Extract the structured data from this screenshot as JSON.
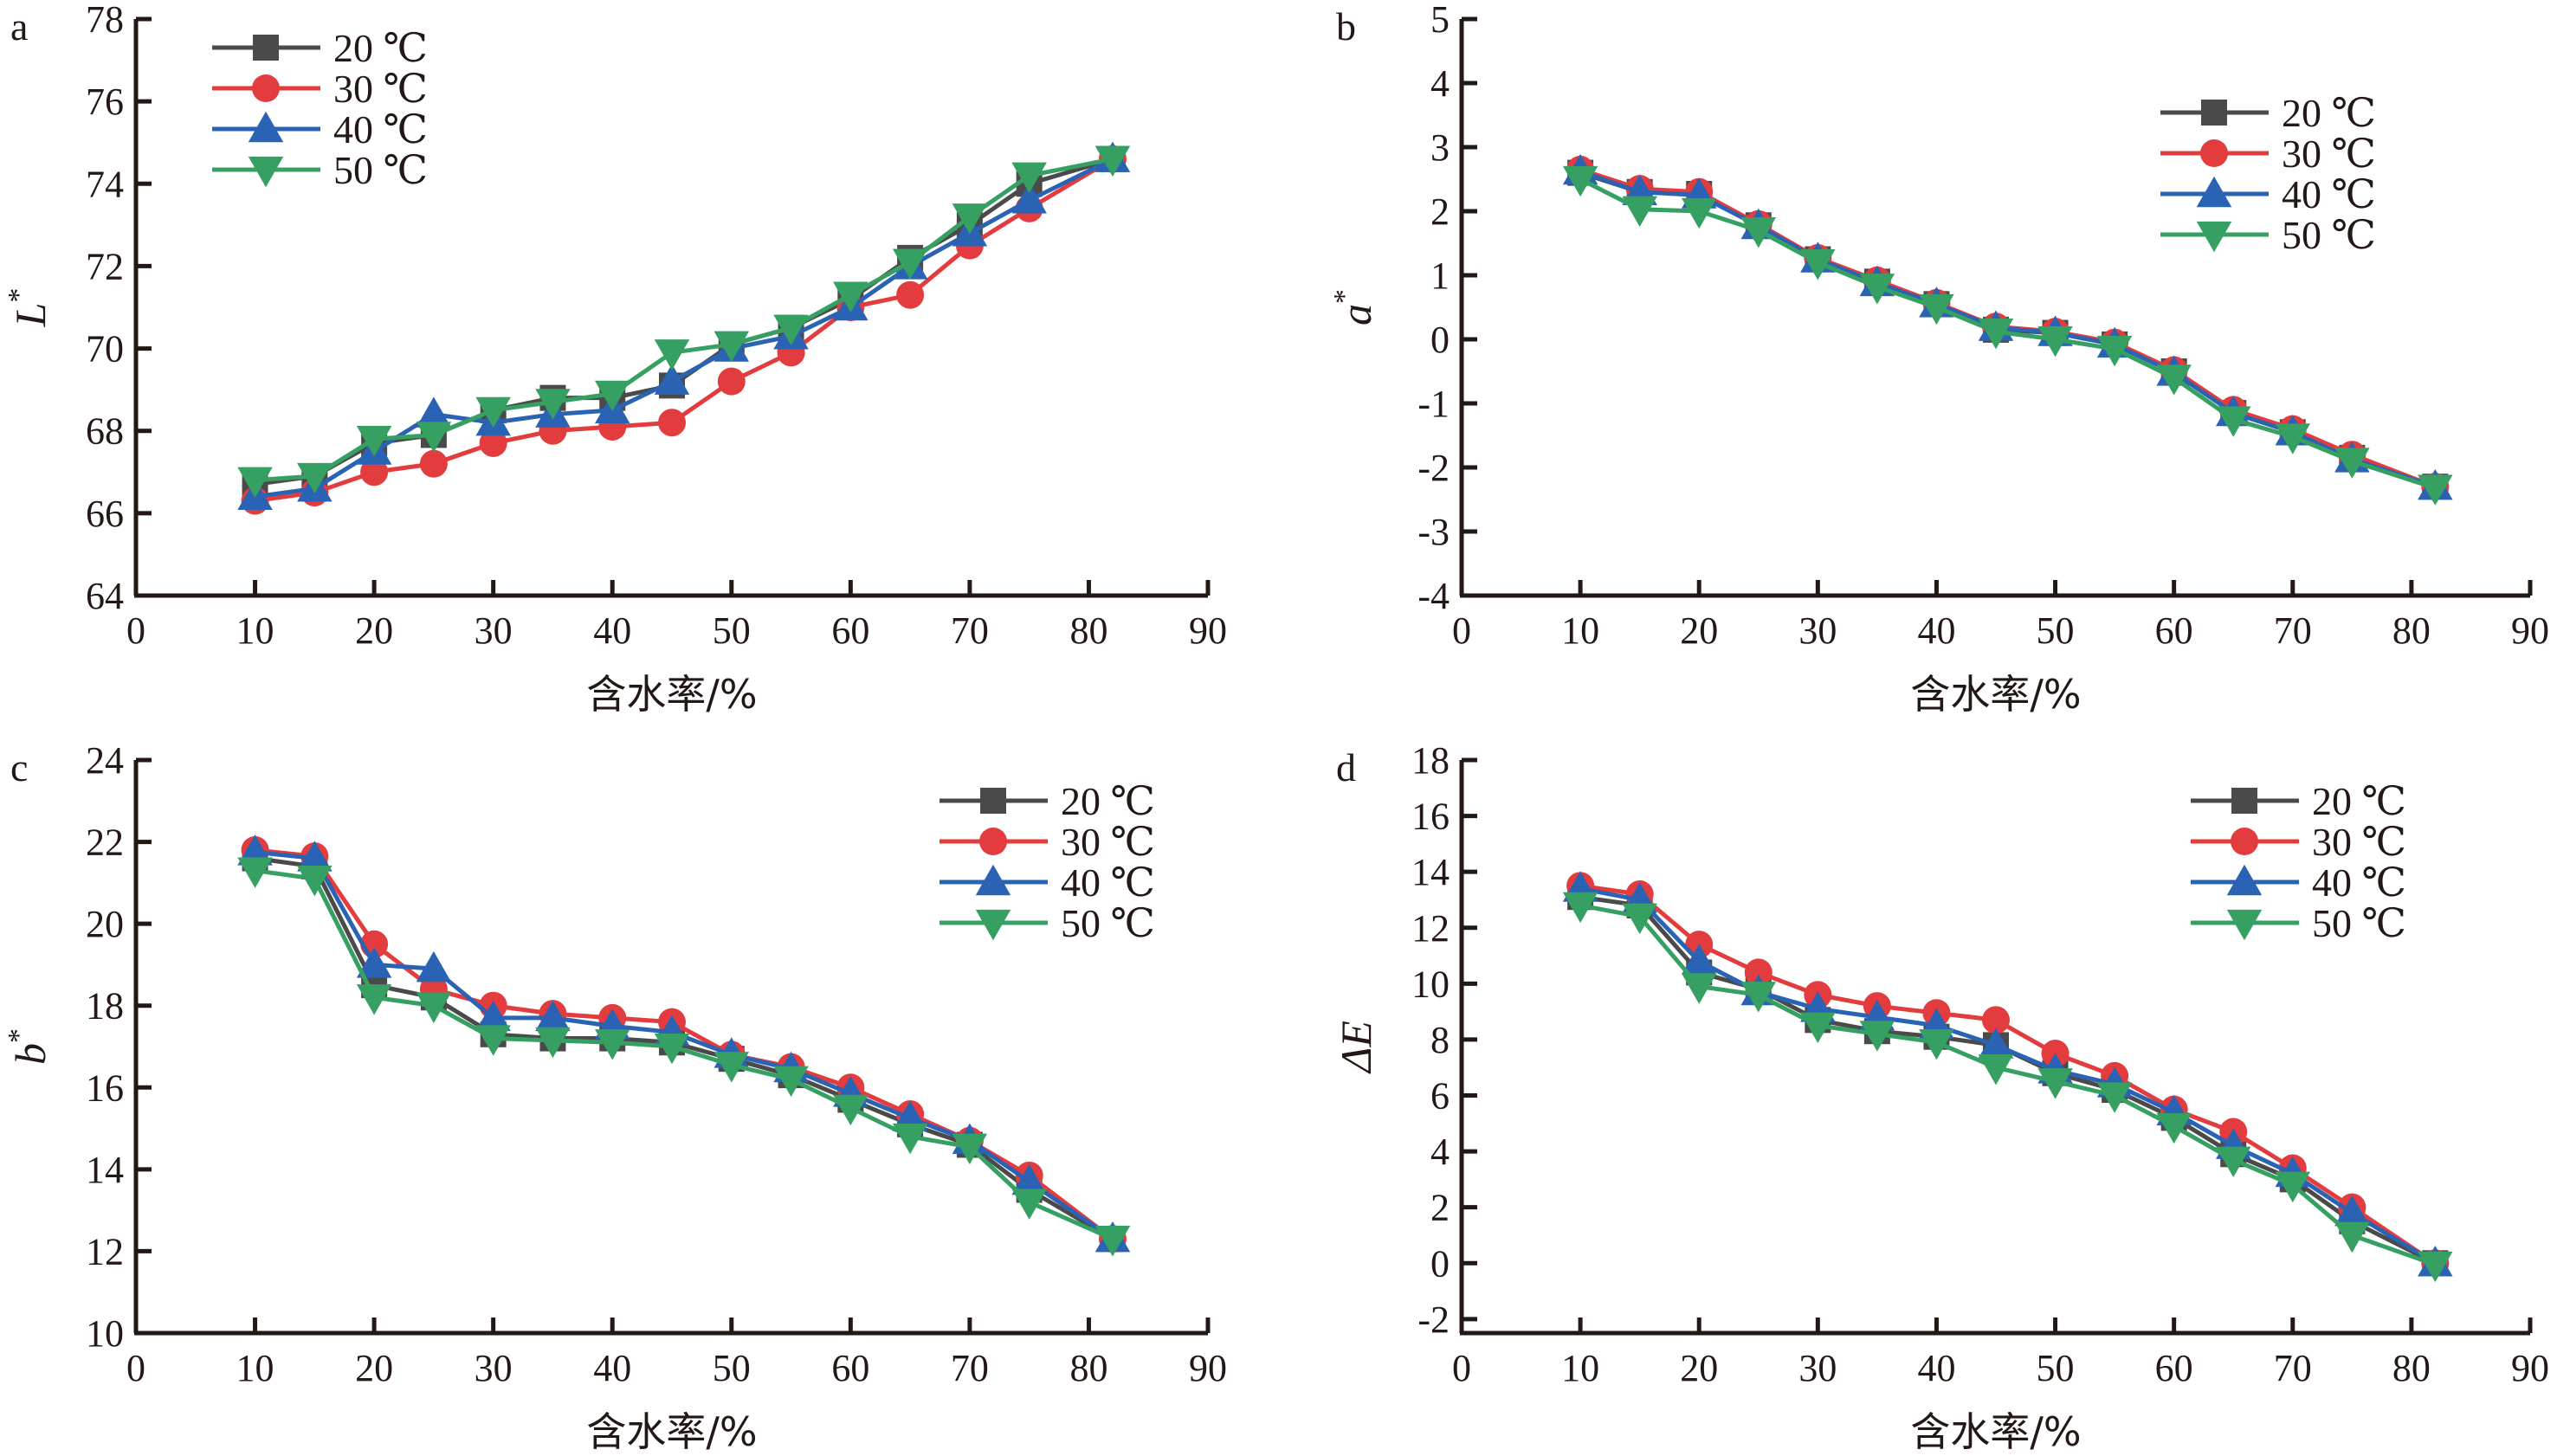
{
  "figure": {
    "panels": [
      "a",
      "b",
      "c",
      "d"
    ]
  },
  "chart_data": [
    {
      "type": "line",
      "panel_label": "a",
      "title": "",
      "xlabel": "含水率/%",
      "ylabel": "L*",
      "ylabel_main": "L",
      "ylabel_sup": "*",
      "xlim": [
        0,
        90
      ],
      "ylim": [
        64,
        78
      ],
      "xticks": [
        0,
        10,
        20,
        30,
        40,
        50,
        60,
        70,
        80,
        90
      ],
      "yticks": [
        64,
        66,
        68,
        70,
        72,
        74,
        76,
        78
      ],
      "grid": false,
      "legend_position": "top-left",
      "x": [
        10,
        15,
        20,
        25,
        30,
        35,
        40,
        45,
        50,
        55,
        60,
        65,
        70,
        75,
        82
      ],
      "series": [
        {
          "name": "20 ℃",
          "color": "#4a4a4a",
          "marker": "square",
          "values": [
            66.7,
            66.9,
            67.7,
            67.9,
            68.5,
            68.8,
            68.8,
            69.1,
            70.1,
            70.5,
            71.2,
            72.2,
            73.0,
            74.0,
            74.6
          ]
        },
        {
          "name": "30 ℃",
          "color": "#e33c3e",
          "marker": "circle",
          "values": [
            66.3,
            66.5,
            67.0,
            67.2,
            67.7,
            68.0,
            68.1,
            68.2,
            69.2,
            69.9,
            71.0,
            71.3,
            72.5,
            73.4,
            74.6
          ]
        },
        {
          "name": "40 ℃",
          "color": "#2a63b3",
          "marker": "triangle-up",
          "values": [
            66.4,
            66.6,
            67.5,
            68.4,
            68.2,
            68.4,
            68.5,
            69.2,
            70.0,
            70.3,
            71.0,
            72.0,
            72.8,
            73.6,
            74.6
          ]
        },
        {
          "name": "50 ℃",
          "color": "#36a062",
          "marker": "triangle-down",
          "values": [
            66.8,
            66.9,
            67.8,
            67.9,
            68.5,
            68.7,
            68.9,
            69.9,
            70.1,
            70.5,
            71.3,
            72.1,
            73.2,
            74.2,
            74.6
          ]
        }
      ]
    },
    {
      "type": "line",
      "panel_label": "b",
      "title": "",
      "xlabel": "含水率/%",
      "ylabel": "a*",
      "ylabel_main": "a",
      "ylabel_sup": "*",
      "xlim": [
        0,
        90
      ],
      "ylim": [
        -4,
        5
      ],
      "xticks": [
        0,
        10,
        20,
        30,
        40,
        50,
        60,
        70,
        80,
        90
      ],
      "yticks": [
        -4,
        -3,
        -2,
        -1,
        0,
        1,
        2,
        3,
        4,
        5
      ],
      "grid": false,
      "legend_position": "top-right",
      "x": [
        10,
        15,
        20,
        25,
        30,
        35,
        40,
        45,
        50,
        55,
        60,
        65,
        70,
        75,
        82
      ],
      "series": [
        {
          "name": "20 ℃",
          "color": "#4a4a4a",
          "marker": "square",
          "values": [
            2.6,
            2.3,
            2.27,
            1.78,
            1.25,
            0.9,
            0.55,
            0.15,
            0.1,
            -0.08,
            -0.5,
            -1.15,
            -1.45,
            -1.85,
            -2.3
          ]
        },
        {
          "name": "30 ℃",
          "color": "#e33c3e",
          "marker": "circle",
          "values": [
            2.65,
            2.35,
            2.3,
            1.8,
            1.27,
            0.92,
            0.57,
            0.2,
            0.12,
            -0.05,
            -0.48,
            -1.1,
            -1.4,
            -1.8,
            -2.3
          ]
        },
        {
          "name": "40 ℃",
          "color": "#2a63b3",
          "marker": "triangle-up",
          "values": [
            2.62,
            2.3,
            2.25,
            1.77,
            1.25,
            0.88,
            0.55,
            0.18,
            0.1,
            -0.08,
            -0.52,
            -1.15,
            -1.45,
            -1.87,
            -2.3
          ]
        },
        {
          "name": "50 ℃",
          "color": "#36a062",
          "marker": "triangle-down",
          "values": [
            2.5,
            2.03,
            2.0,
            1.7,
            1.2,
            0.82,
            0.5,
            0.12,
            0.0,
            -0.15,
            -0.6,
            -1.25,
            -1.52,
            -1.9,
            -2.32
          ]
        }
      ]
    },
    {
      "type": "line",
      "panel_label": "c",
      "title": "",
      "xlabel": "含水率/%",
      "ylabel": "b*",
      "ylabel_main": "b",
      "ylabel_sup": "*",
      "xlim": [
        0,
        90
      ],
      "ylim": [
        10,
        24
      ],
      "xticks": [
        0,
        10,
        20,
        30,
        40,
        50,
        60,
        70,
        80,
        90
      ],
      "yticks": [
        10,
        12,
        14,
        16,
        18,
        20,
        22,
        24
      ],
      "grid": false,
      "legend_position": "top-right",
      "x": [
        10,
        15,
        20,
        25,
        30,
        35,
        40,
        45,
        50,
        55,
        60,
        65,
        70,
        75,
        82
      ],
      "series": [
        {
          "name": "20 ℃",
          "color": "#4a4a4a",
          "marker": "square",
          "values": [
            21.6,
            21.4,
            18.5,
            18.2,
            17.3,
            17.2,
            17.2,
            17.1,
            16.7,
            16.3,
            15.7,
            15.1,
            14.6,
            13.5,
            12.3
          ]
        },
        {
          "name": "30 ℃",
          "color": "#e33c3e",
          "marker": "circle",
          "values": [
            21.8,
            21.65,
            19.5,
            18.4,
            18.0,
            17.8,
            17.7,
            17.6,
            16.8,
            16.5,
            16.0,
            15.35,
            14.7,
            13.85,
            12.3
          ]
        },
        {
          "name": "40 ℃",
          "color": "#2a63b3",
          "marker": "triangle-up",
          "values": [
            21.75,
            21.6,
            19.0,
            18.9,
            17.7,
            17.7,
            17.5,
            17.35,
            16.8,
            16.45,
            15.85,
            15.25,
            14.7,
            13.7,
            12.3
          ]
        },
        {
          "name": "50 ℃",
          "color": "#36a062",
          "marker": "triangle-down",
          "values": [
            21.3,
            21.1,
            18.2,
            18.0,
            17.2,
            17.15,
            17.1,
            17.0,
            16.55,
            16.2,
            15.5,
            14.8,
            14.55,
            13.2,
            12.3
          ]
        }
      ]
    },
    {
      "type": "line",
      "panel_label": "d",
      "title": "",
      "xlabel": "含水率/%",
      "ylabel": "ΔE",
      "ylabel_main": "ΔE",
      "ylabel_sup": "",
      "xlim": [
        0,
        90
      ],
      "ylim": [
        -2.5,
        18
      ],
      "xticks": [
        0,
        10,
        20,
        30,
        40,
        50,
        60,
        70,
        80,
        90
      ],
      "yticks": [
        -2,
        0,
        2,
        4,
        6,
        8,
        10,
        12,
        14,
        16,
        18
      ],
      "grid": false,
      "legend_position": "top-right",
      "x": [
        10,
        15,
        20,
        25,
        30,
        35,
        40,
        45,
        50,
        55,
        60,
        65,
        70,
        75,
        82
      ],
      "series": [
        {
          "name": "20 ℃",
          "color": "#4a4a4a",
          "marker": "square",
          "values": [
            13.1,
            12.8,
            10.4,
            9.8,
            8.7,
            8.3,
            8.1,
            7.8,
            6.8,
            6.2,
            5.2,
            3.9,
            3.0,
            1.5,
            0.0
          ]
        },
        {
          "name": "30 ℃",
          "color": "#e33c3e",
          "marker": "circle",
          "values": [
            13.5,
            13.2,
            11.4,
            10.4,
            9.6,
            9.2,
            8.95,
            8.7,
            7.5,
            6.7,
            5.5,
            4.7,
            3.4,
            2.0,
            0.0
          ]
        },
        {
          "name": "40 ℃",
          "color": "#2a63b3",
          "marker": "triangle-up",
          "values": [
            13.4,
            13.0,
            10.8,
            9.7,
            9.1,
            8.8,
            8.5,
            7.8,
            6.9,
            6.4,
            5.4,
            4.2,
            3.2,
            1.8,
            0.0
          ]
        },
        {
          "name": "50 ℃",
          "color": "#36a062",
          "marker": "triangle-down",
          "values": [
            12.8,
            12.4,
            9.9,
            9.6,
            8.5,
            8.2,
            7.9,
            7.0,
            6.5,
            6.0,
            4.9,
            3.7,
            2.8,
            1.0,
            -0.05
          ]
        }
      ]
    }
  ]
}
